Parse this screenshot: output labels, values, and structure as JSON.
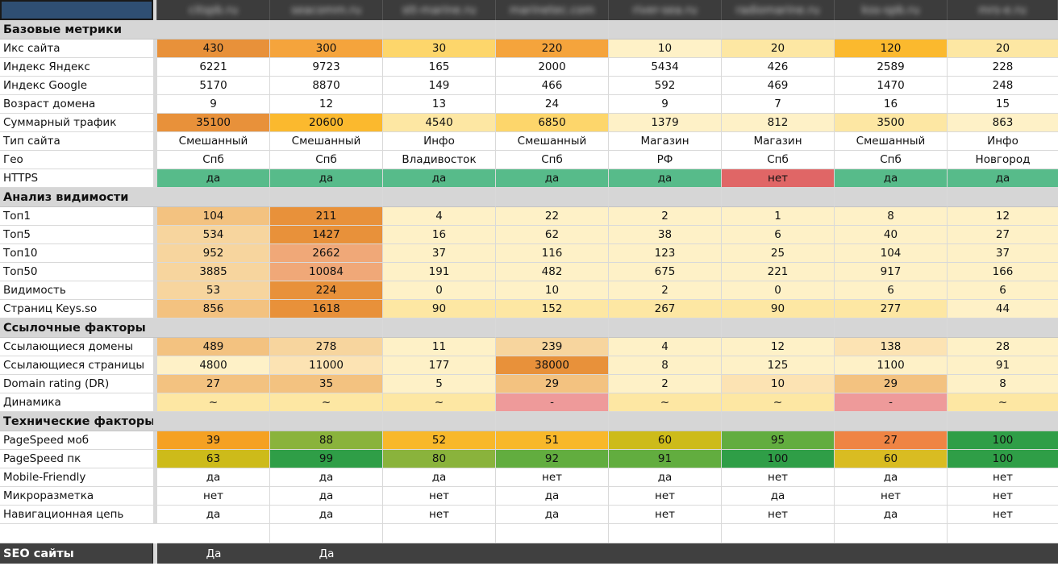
{
  "sites": [
    "citspb.ru",
    "seacomm.ru",
    "stt-marine.ru",
    "marinetec.com",
    "river-sea.ru",
    "radiomarine.ru",
    "kss-spb.ru",
    "mrs-e.ru"
  ],
  "colors": {
    "hdr_a": "#e8913a",
    "hdr_b": "#f5a43c",
    "hdr_c": "#fbb92e",
    "hdr_d": "#fdd66b",
    "hdr_e": "#fde7a3",
    "hdr_f": "#fef1c7",
    "peach_a": "#f3c280",
    "peach_b": "#f7d59e",
    "peach_c": "#fce3b3",
    "green": "#57bb8a",
    "red": "#e06666",
    "pink": "#ee9a9a",
    "salmon": "#f0a878",
    "ps_orange1": "#f5a122",
    "ps_orange2": "#f8b82a",
    "ps_gold": "#d9bc22",
    "ps_olive": "#cdbb1a",
    "ps_lime": "#8ab33c",
    "ps_green": "#62ad3f",
    "ps_green2": "#43a446",
    "ps_darkgreen": "#2f9e47",
    "ps_orange3": "#ef8444"
  },
  "rows": [
    {
      "type": "header",
      "label": ""
    },
    {
      "type": "section",
      "label": "Базовые метрики"
    },
    {
      "type": "data",
      "label": "Икс сайта",
      "values": [
        "430",
        "300",
        "30",
        "220",
        "10",
        "20",
        "120",
        "20"
      ],
      "bg": [
        "hdr_a",
        "hdr_b",
        "hdr_d",
        "hdr_b",
        "hdr_f",
        "hdr_e",
        "hdr_c",
        "hdr_e"
      ]
    },
    {
      "type": "data",
      "label": "Индекс Яндекс",
      "values": [
        "6221",
        "9723",
        "165",
        "2000",
        "5434",
        "426",
        "2589",
        "228"
      ],
      "bg": []
    },
    {
      "type": "data",
      "label": "Индекс Google",
      "values": [
        "5170",
        "8870",
        "149",
        "466",
        "592",
        "469",
        "1470",
        "248"
      ],
      "bg": []
    },
    {
      "type": "data",
      "label": "Возраст домена",
      "values": [
        "9",
        "12",
        "13",
        "24",
        "9",
        "7",
        "16",
        "15"
      ],
      "bg": []
    },
    {
      "type": "data",
      "label": "Суммарный трафик",
      "values": [
        "35100",
        "20600",
        "4540",
        "6850",
        "1379",
        "812",
        "3500",
        "863"
      ],
      "bg": [
        "hdr_a",
        "hdr_c",
        "hdr_e",
        "hdr_d",
        "hdr_f",
        "hdr_f",
        "hdr_e",
        "hdr_f"
      ]
    },
    {
      "type": "data",
      "label": "Тип сайта",
      "values": [
        "Смешанный",
        "Смешанный",
        "Инфо",
        "Смешанный",
        "Магазин",
        "Магазин",
        "Смешанный",
        "Инфо"
      ],
      "bg": []
    },
    {
      "type": "data",
      "label": "Гео",
      "values": [
        "Спб",
        "Спб",
        "Владивосток",
        "Спб",
        "РФ",
        "Спб",
        "Спб",
        "Новгород"
      ],
      "bg": []
    },
    {
      "type": "data",
      "label": "HTTPS",
      "values": [
        "да",
        "да",
        "да",
        "да",
        "да",
        "нет",
        "да",
        "да"
      ],
      "bg": [
        "green",
        "green",
        "green",
        "green",
        "green",
        "red",
        "green",
        "green"
      ]
    },
    {
      "type": "section",
      "label": "Анализ видимости"
    },
    {
      "type": "data",
      "label": "Топ1",
      "values": [
        "104",
        "211",
        "4",
        "22",
        "2",
        "1",
        "8",
        "12"
      ],
      "bg": [
        "peach_a",
        "hdr_a",
        "hdr_f",
        "hdr_f",
        "hdr_f",
        "hdr_f",
        "hdr_f",
        "hdr_f"
      ]
    },
    {
      "type": "data",
      "label": "Топ5",
      "values": [
        "534",
        "1427",
        "16",
        "62",
        "38",
        "6",
        "40",
        "27"
      ],
      "bg": [
        "peach_b",
        "hdr_a",
        "hdr_f",
        "hdr_f",
        "hdr_f",
        "hdr_f",
        "hdr_f",
        "hdr_f"
      ]
    },
    {
      "type": "data",
      "label": "Топ10",
      "values": [
        "952",
        "2662",
        "37",
        "116",
        "123",
        "25",
        "104",
        "37"
      ],
      "bg": [
        "peach_b",
        "salmon",
        "hdr_f",
        "hdr_f",
        "hdr_f",
        "hdr_f",
        "hdr_f",
        "hdr_f"
      ]
    },
    {
      "type": "data",
      "label": "Топ50",
      "values": [
        "3885",
        "10084",
        "191",
        "482",
        "675",
        "221",
        "917",
        "166"
      ],
      "bg": [
        "peach_b",
        "salmon",
        "hdr_f",
        "hdr_f",
        "hdr_f",
        "hdr_f",
        "hdr_f",
        "hdr_f"
      ]
    },
    {
      "type": "data",
      "label": "Видимость",
      "values": [
        "53",
        "224",
        "0",
        "10",
        "2",
        "0",
        "6",
        "6"
      ],
      "bg": [
        "peach_b",
        "hdr_a",
        "hdr_f",
        "hdr_f",
        "hdr_f",
        "hdr_f",
        "hdr_f",
        "hdr_f"
      ]
    },
    {
      "type": "data",
      "label": "Страниц Keys.so",
      "values": [
        "856",
        "1618",
        "90",
        "152",
        "267",
        "90",
        "277",
        "44"
      ],
      "bg": [
        "peach_a",
        "hdr_a",
        "hdr_e",
        "hdr_e",
        "hdr_e",
        "hdr_e",
        "hdr_e",
        "hdr_f"
      ]
    },
    {
      "type": "section",
      "label": "Ссылочные факторы"
    },
    {
      "type": "data",
      "label": "Ссылающиеся домены",
      "values": [
        "489",
        "278",
        "11",
        "239",
        "4",
        "12",
        "138",
        "28"
      ],
      "bg": [
        "peach_a",
        "peach_b",
        "hdr_f",
        "peach_b",
        "hdr_f",
        "hdr_f",
        "peach_c",
        "hdr_f"
      ]
    },
    {
      "type": "data",
      "label": "Ссылающиеся страницы",
      "values": [
        "4800",
        "11000",
        "177",
        "38000",
        "8",
        "125",
        "1100",
        "91"
      ],
      "bg": [
        "hdr_f",
        "peach_c",
        "hdr_f",
        "hdr_a",
        "hdr_f",
        "hdr_f",
        "hdr_f",
        "hdr_f"
      ]
    },
    {
      "type": "data",
      "label": "Domain rating (DR)",
      "values": [
        "27",
        "35",
        "5",
        "29",
        "2",
        "10",
        "29",
        "8"
      ],
      "bg": [
        "peach_a",
        "peach_a",
        "hdr_f",
        "peach_a",
        "hdr_f",
        "peach_c",
        "peach_a",
        "hdr_f"
      ]
    },
    {
      "type": "data",
      "label": "Динамика",
      "values": [
        "~",
        "~",
        "~",
        "-",
        "~",
        "~",
        "-",
        "~"
      ],
      "bg": [
        "hdr_e",
        "hdr_e",
        "hdr_e",
        "pink",
        "hdr_e",
        "hdr_e",
        "pink",
        "hdr_e"
      ]
    },
    {
      "type": "section",
      "label": "Технические факторы"
    },
    {
      "type": "data",
      "label": "PageSpeed моб",
      "values": [
        "39",
        "88",
        "52",
        "51",
        "60",
        "95",
        "27",
        "100"
      ],
      "bg": [
        "ps_orange1",
        "ps_lime",
        "ps_orange2",
        "ps_orange2",
        "ps_olive",
        "ps_green",
        "ps_orange3",
        "ps_darkgreen"
      ]
    },
    {
      "type": "data",
      "label": "PageSpeed пк",
      "values": [
        "63",
        "99",
        "80",
        "92",
        "91",
        "100",
        "60",
        "100"
      ],
      "bg": [
        "ps_olive",
        "ps_darkgreen",
        "ps_lime",
        "ps_green",
        "ps_green",
        "ps_darkgreen",
        "ps_gold",
        "ps_darkgreen"
      ]
    },
    {
      "type": "data",
      "label": "Mobile-Friendly",
      "values": [
        "да",
        "да",
        "да",
        "нет",
        "да",
        "нет",
        "да",
        "нет"
      ],
      "bg": []
    },
    {
      "type": "data",
      "label": "Микроразметка",
      "values": [
        "нет",
        "да",
        "нет",
        "да",
        "нет",
        "да",
        "нет",
        "нет"
      ],
      "bg": []
    },
    {
      "type": "data",
      "label": "Навигационная цепь",
      "values": [
        "да",
        "да",
        "нет",
        "да",
        "нет",
        "нет",
        "да",
        "нет"
      ],
      "bg": []
    },
    {
      "type": "blank",
      "label": ""
    },
    {
      "type": "footer",
      "label": "SEO сайты",
      "values": [
        "Да",
        "Да",
        "",
        "",
        "",
        "",
        "",
        ""
      ]
    }
  ]
}
